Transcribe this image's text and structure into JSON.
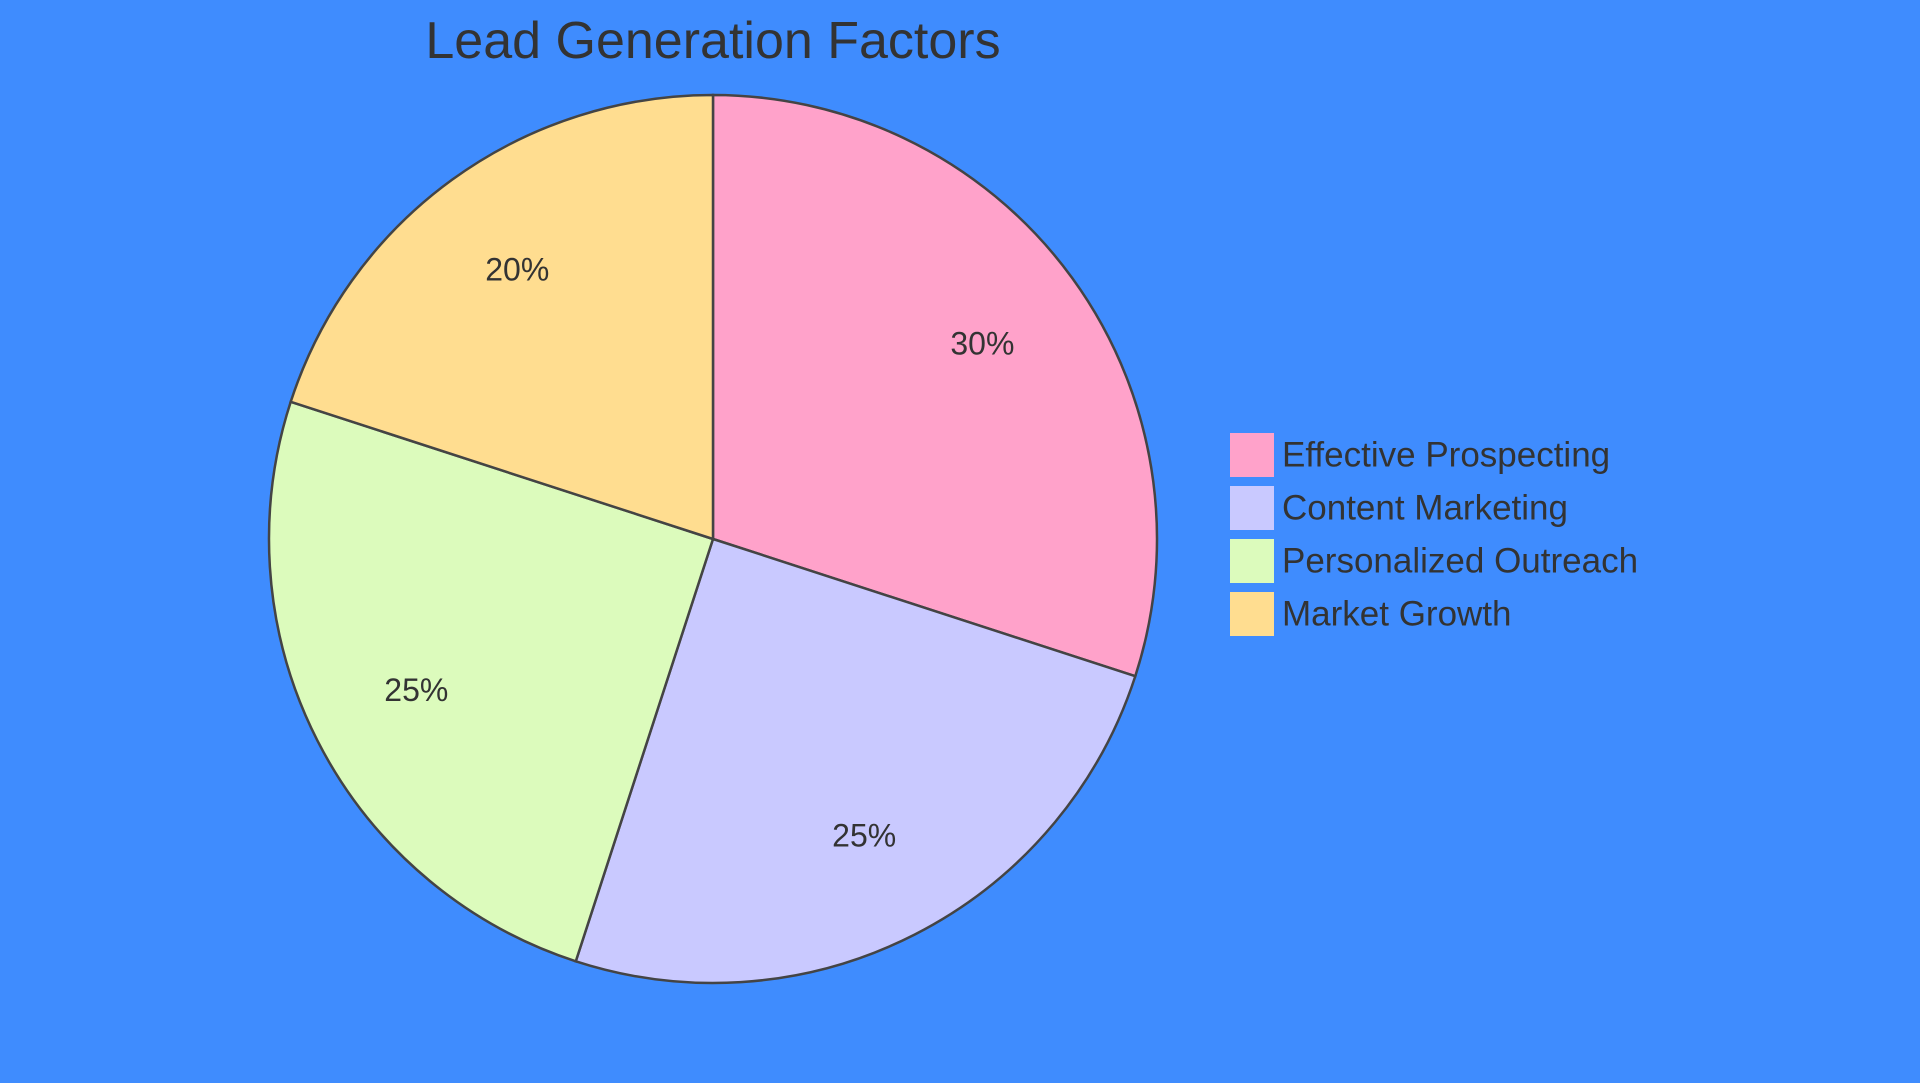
{
  "chart_data": {
    "type": "pie",
    "title": "Lead Generation Factors",
    "categories": [
      "Effective Prospecting",
      "Content Marketing",
      "Personalized Outreach",
      "Market Growth"
    ],
    "values": [
      30,
      25,
      25,
      20
    ],
    "value_labels": [
      "30%",
      "25%",
      "25%",
      "20%"
    ],
    "unit": "%",
    "colors": [
      "#ffa2ca",
      "#c9c9ff",
      "#dcfbbc",
      "#ffdd90"
    ],
    "stroke_color": "#444444",
    "start_angle": "12 o'clock",
    "direction": "clockwise",
    "legend_position": "right"
  }
}
